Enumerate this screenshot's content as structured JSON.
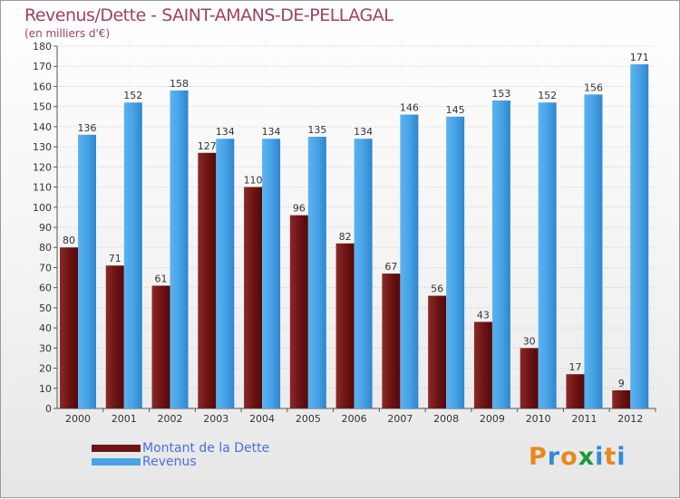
{
  "title": "Revenus/Dette - SAINT-AMANS-DE-PELLAGAL",
  "subtitle": "(en milliers d'€)",
  "logo": {
    "letters": [
      "P",
      "r",
      "o",
      "x",
      "i",
      "t",
      "i"
    ],
    "colors": [
      "#e8891a",
      "#2f8dd8",
      "#e8891a",
      "#1a9a3a",
      "#2f8dd8",
      "#e8891a",
      "#2f8dd8"
    ]
  },
  "chart_data": {
    "type": "bar",
    "categories": [
      "2000",
      "2001",
      "2002",
      "2003",
      "2004",
      "2005",
      "2006",
      "2007",
      "2008",
      "2009",
      "2010",
      "2011",
      "2012"
    ],
    "series": [
      {
        "name": "Montant de la Dette",
        "color": "#6e1414",
        "values": [
          80,
          71,
          61,
          127,
          110,
          96,
          82,
          67,
          56,
          43,
          30,
          17,
          9
        ]
      },
      {
        "name": "Revenus",
        "color": "#4aa3e6",
        "values": [
          136,
          152,
          158,
          134,
          134,
          135,
          134,
          146,
          145,
          153,
          152,
          156,
          171
        ]
      }
    ],
    "ylim": [
      0,
      180
    ],
    "yticks": [
      0,
      10,
      20,
      30,
      40,
      50,
      60,
      70,
      80,
      90,
      100,
      110,
      120,
      130,
      140,
      150,
      160,
      170,
      180
    ],
    "grid": true,
    "legend_position": "bottom-left"
  }
}
